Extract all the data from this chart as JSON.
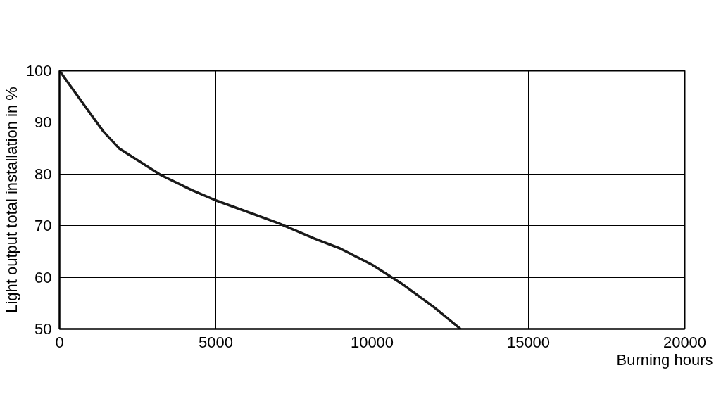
{
  "chart_data": {
    "type": "line",
    "xlabel": "Burning hours",
    "ylabel": "Light output total installation in %",
    "xlim": [
      0,
      20000
    ],
    "ylim": [
      50,
      100
    ],
    "xticks": [
      0,
      5000,
      10000,
      15000,
      20000
    ],
    "yticks": [
      50,
      60,
      70,
      80,
      90,
      100
    ],
    "grid": true,
    "series": [
      {
        "color": "#1a1a1a",
        "x": [
          0,
          950,
          1410,
          1920,
          3240,
          4230,
          5000,
          7000,
          8160,
          8970,
          10010,
          10940,
          11980,
          12830
        ],
        "values": [
          100,
          92,
          88.2,
          84.9,
          79.8,
          76.9,
          74.9,
          70.5,
          67.5,
          65.6,
          62.4,
          58.8,
          54.2,
          50
        ]
      }
    ]
  }
}
